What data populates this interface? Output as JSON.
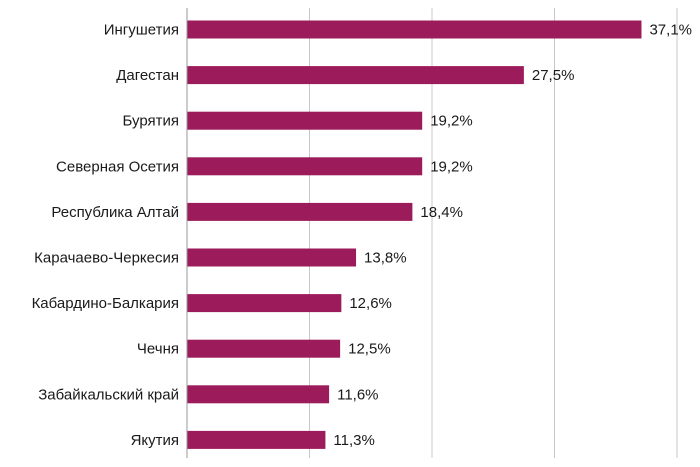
{
  "chart_data": {
    "type": "bar",
    "orientation": "horizontal",
    "title": "",
    "xlabel": "",
    "ylabel": "",
    "categories": [
      "Ингушетия",
      "Дагестан",
      "Бурятия",
      "Северная Осетия",
      "Республика Алтай",
      "Карачаево-Черкесия",
      "Кабардино-Балкария",
      "Чечня",
      "Забайкальский край",
      "Якутия"
    ],
    "values": [
      37.1,
      27.5,
      19.2,
      19.2,
      18.4,
      13.8,
      12.6,
      12.5,
      11.6,
      11.3
    ],
    "value_labels": [
      "37,1%",
      "27,5%",
      "19,2%",
      "19,2%",
      "18,4%",
      "13,8%",
      "12,6%",
      "12,5%",
      "11,6%",
      "11,3%"
    ],
    "xlim": [
      0,
      40
    ],
    "grid_step": 10,
    "grid": true,
    "bar_color": "#9c1b5b"
  }
}
